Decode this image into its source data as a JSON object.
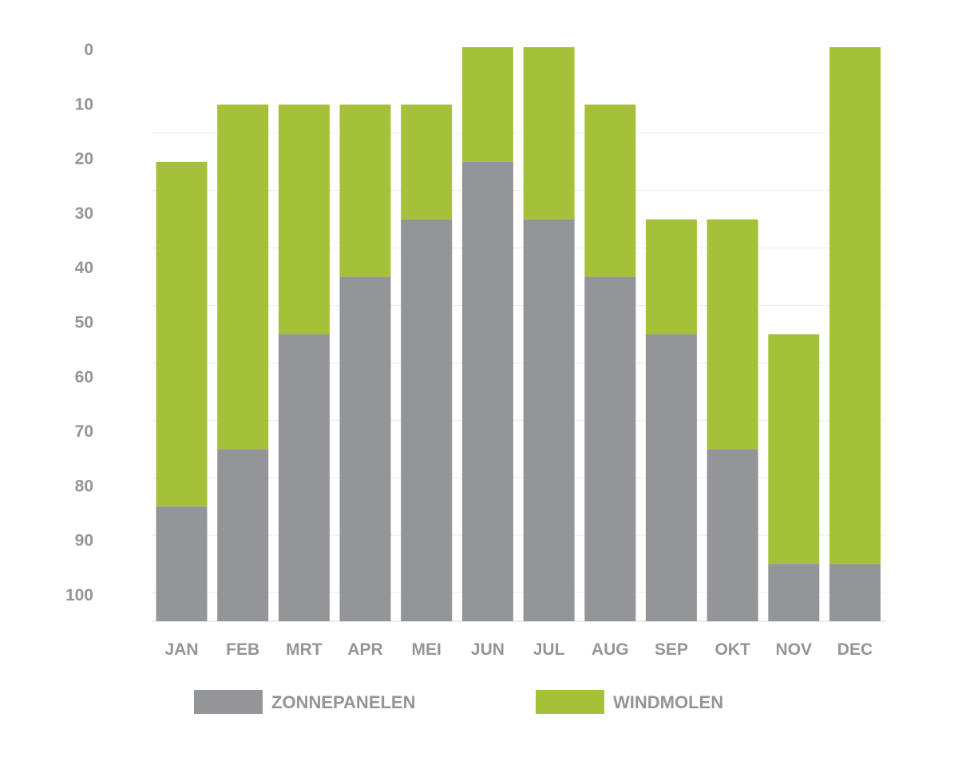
{
  "chart_data": {
    "type": "bar",
    "stacked": true,
    "categories": [
      "JAN",
      "FEB",
      "MRT",
      "APR",
      "MEI",
      "JUN",
      "JUL",
      "AUG",
      "SEP",
      "OKT",
      "NOV",
      "DEC"
    ],
    "series": [
      {
        "name": "ZONNEPANELEN",
        "color": "#939598",
        "values": [
          20,
          30,
          50,
          60,
          70,
          80,
          70,
          60,
          50,
          30,
          10,
          10
        ]
      },
      {
        "name": "WINDMOLEN",
        "color": "#a5c13a",
        "values": [
          60,
          60,
          40,
          30,
          20,
          20,
          30,
          30,
          20,
          40,
          40,
          90
        ]
      }
    ],
    "y_ticks": [
      "0",
      "10",
      "20",
      "30",
      "40",
      "50",
      "60",
      "70",
      "80",
      "90",
      "100"
    ],
    "ylim": [
      0,
      100
    ],
    "grid": true,
    "legend_position": "bottom"
  }
}
